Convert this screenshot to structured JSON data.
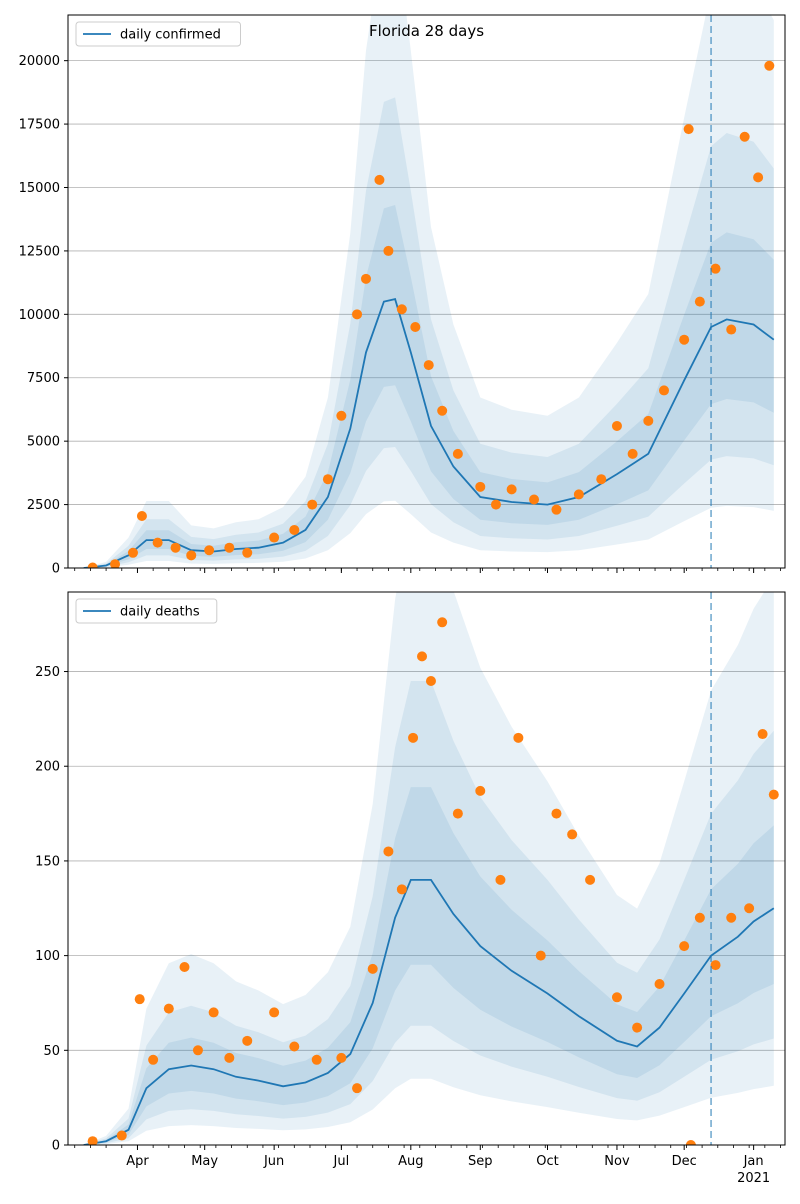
{
  "chart_data": [
    {
      "type": "line",
      "title": "Florida 28 days",
      "xlabel": "",
      "ylabel": "",
      "legend_placement": "top-left",
      "grid": "y",
      "x_ticks": [
        "Apr",
        "May",
        "Jun",
        "Jul",
        "Aug",
        "Sep",
        "Oct",
        "Nov",
        "Dec",
        "Jan"
      ],
      "year_label": "2021",
      "ylim": [
        0,
        21800
      ],
      "y_ticks": [
        0,
        2500,
        5000,
        7500,
        10000,
        12500,
        15000,
        17500,
        20000
      ],
      "forecast_start": "Dec 13",
      "series": [
        {
          "name": "daily confirmed",
          "kind": "line",
          "color": "#1f77b4",
          "x": [
            "Mar 8",
            "Mar 18",
            "Mar 28",
            "Apr 5",
            "Apr 15",
            "Apr 25",
            "May 5",
            "May 15",
            "May 25",
            "Jun 5",
            "Jun 15",
            "Jun 25",
            "Jul 5",
            "Jul 12",
            "Jul 20",
            "Jul 25",
            "Aug 1",
            "Aug 10",
            "Aug 20",
            "Sep 1",
            "Sep 15",
            "Oct 1",
            "Oct 15",
            "Nov 1",
            "Nov 15",
            "Dec 1",
            "Dec 13",
            "Dec 20",
            "Jan 1",
            "Jan 10"
          ],
          "values": [
            0,
            100,
            500,
            1100,
            1100,
            700,
            650,
            750,
            800,
            1000,
            1500,
            2800,
            5500,
            8500,
            10500,
            10600,
            8500,
            5600,
            4000,
            2800,
            2600,
            2500,
            2800,
            3700,
            4500,
            7400,
            9500,
            9800,
            9600,
            9000
          ]
        },
        {
          "name": "",
          "kind": "points",
          "color": "#ff7f0e",
          "x": [
            "Mar 12",
            "Mar 22",
            "Mar 30",
            "Apr 3",
            "Apr 10",
            "Apr 18",
            "Apr 25",
            "May 3",
            "May 12",
            "May 20",
            "Jun 1",
            "Jun 10",
            "Jun 18",
            "Jun 25",
            "Jul 1",
            "Jul 8",
            "Jul 12",
            "Jul 18",
            "Jul 22",
            "Jul 28",
            "Aug 3",
            "Aug 9",
            "Aug 15",
            "Aug 22",
            "Sep 1",
            "Sep 8",
            "Sep 15",
            "Sep 25",
            "Oct 5",
            "Oct 15",
            "Oct 25",
            "Nov 1",
            "Nov 8",
            "Nov 15",
            "Nov 22",
            "Dec 1",
            "Dec 8",
            "Dec 15",
            "Dec 22",
            "Dec 28",
            "Jan 3",
            "Jan 8",
            "Dec 3"
          ],
          "values": [
            20,
            150,
            600,
            2050,
            1000,
            800,
            500,
            700,
            800,
            600,
            1200,
            1500,
            2500,
            3500,
            6000,
            10000,
            11400,
            15300,
            12500,
            10200,
            9500,
            8000,
            6200,
            4500,
            3200,
            2500,
            3100,
            2700,
            2300,
            2900,
            3500,
            5600,
            4500,
            5800,
            7000,
            9000,
            10500,
            11800,
            9400,
            17000,
            15400,
            19800,
            17300
          ]
        }
      ]
    },
    {
      "type": "line",
      "title": "",
      "xlabel": "",
      "ylabel": "",
      "legend_placement": "top-left",
      "grid": "y",
      "x_ticks": [
        "Apr",
        "May",
        "Jun",
        "Jul",
        "Aug",
        "Sep",
        "Oct",
        "Nov",
        "Dec",
        "Jan"
      ],
      "year_label": "2021",
      "ylim": [
        0,
        292
      ],
      "y_ticks": [
        0,
        50,
        100,
        150,
        200,
        250
      ],
      "forecast_start": "Dec 13",
      "series": [
        {
          "name": "daily deaths",
          "kind": "line",
          "color": "#1f77b4",
          "x": [
            "Mar 8",
            "Mar 18",
            "Mar 28",
            "Apr 5",
            "Apr 15",
            "Apr 25",
            "May 5",
            "May 15",
            "May 25",
            "Jun 5",
            "Jun 15",
            "Jun 25",
            "Jul 5",
            "Jul 15",
            "Jul 25",
            "Aug 1",
            "Aug 10",
            "Aug 20",
            "Sep 1",
            "Sep 15",
            "Oct 1",
            "Oct 15",
            "Nov 1",
            "Nov 10",
            "Nov 20",
            "Dec 1",
            "Dec 13",
            "Dec 25",
            "Jan 1",
            "Jan 10"
          ],
          "values": [
            0,
            2,
            8,
            30,
            40,
            42,
            40,
            36,
            34,
            31,
            33,
            38,
            48,
            75,
            120,
            140,
            140,
            122,
            105,
            92,
            80,
            68,
            55,
            52,
            62,
            80,
            100,
            110,
            118,
            125
          ]
        },
        {
          "name": "",
          "kind": "points",
          "color": "#ff7f0e",
          "x": [
            "Mar 12",
            "Mar 25",
            "Apr 2",
            "Apr 8",
            "Apr 15",
            "Apr 22",
            "Apr 28",
            "May 5",
            "May 12",
            "May 20",
            "Jun 1",
            "Jun 10",
            "Jun 20",
            "Jul 1",
            "Jul 8",
            "Jul 15",
            "Jul 22",
            "Jul 28",
            "Aug 2",
            "Aug 6",
            "Aug 10",
            "Aug 15",
            "Aug 22",
            "Sep 1",
            "Sep 10",
            "Sep 18",
            "Sep 28",
            "Oct 5",
            "Oct 12",
            "Oct 20",
            "Nov 1",
            "Nov 10",
            "Nov 20",
            "Dec 1",
            "Dec 8",
            "Dec 15",
            "Dec 22",
            "Dec 30",
            "Jan 5",
            "Jan 10",
            "Dec 4"
          ],
          "values": [
            2,
            5,
            77,
            45,
            72,
            94,
            50,
            70,
            46,
            55,
            70,
            52,
            45,
            46,
            30,
            93,
            155,
            135,
            215,
            258,
            245,
            276,
            175,
            187,
            140,
            215,
            100,
            175,
            164,
            140,
            78,
            62,
            85,
            105,
            120,
            95,
            120,
            125,
            217,
            185,
            0
          ]
        }
      ]
    }
  ]
}
